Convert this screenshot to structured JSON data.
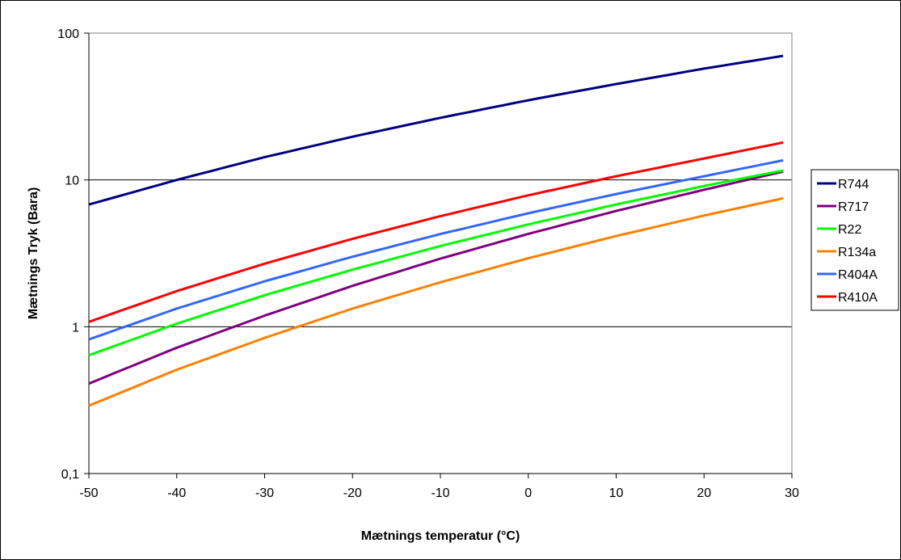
{
  "chart_data": {
    "type": "line",
    "title": "",
    "xlabel": "Mætnings temperatur (°C)",
    "ylabel": "Mætnings Tryk (Bara)",
    "xlim": [
      -50,
      30
    ],
    "ylim": [
      0.1,
      100
    ],
    "yscale": "log",
    "grid": "horizontal major lines",
    "legend_position": "right",
    "x_ticks": [
      -50,
      -40,
      -30,
      -20,
      -10,
      0,
      10,
      20,
      30
    ],
    "x_tick_labels": [
      "-50",
      "-40",
      "-30",
      "-20",
      "-10",
      "0",
      "10",
      "20",
      "30"
    ],
    "y_ticks": [
      0.1,
      1,
      10,
      100
    ],
    "y_tick_labels": [
      "0,1",
      "1",
      "10",
      "100"
    ],
    "x": [
      -50,
      -40,
      -30,
      -20,
      -10,
      0,
      10,
      20,
      29
    ],
    "series": [
      {
        "name": "R744",
        "color": "#000080",
        "values": [
          6.8,
          10.0,
          14.3,
          19.7,
          26.5,
          34.9,
          45.0,
          57.3,
          70.0
        ]
      },
      {
        "name": "R717",
        "color": "#800080",
        "values": [
          0.41,
          0.72,
          1.19,
          1.9,
          2.91,
          4.29,
          6.15,
          8.57,
          11.4
        ]
      },
      {
        "name": "R22",
        "color": "#00ff00",
        "values": [
          0.64,
          1.05,
          1.64,
          2.45,
          3.55,
          4.98,
          6.81,
          9.1,
          11.6
        ]
      },
      {
        "name": "R134a",
        "color": "#ff8000",
        "values": [
          0.29,
          0.51,
          0.84,
          1.33,
          2.01,
          2.93,
          4.15,
          5.72,
          7.5
        ]
      },
      {
        "name": "R404A",
        "color": "#3366ff",
        "values": [
          0.82,
          1.33,
          2.04,
          3.0,
          4.28,
          5.93,
          8.02,
          10.6,
          13.6
        ]
      },
      {
        "name": "R410A",
        "color": "#ff0000",
        "values": [
          1.08,
          1.75,
          2.69,
          3.97,
          5.67,
          7.86,
          10.6,
          14.0,
          18.0
        ]
      }
    ]
  }
}
